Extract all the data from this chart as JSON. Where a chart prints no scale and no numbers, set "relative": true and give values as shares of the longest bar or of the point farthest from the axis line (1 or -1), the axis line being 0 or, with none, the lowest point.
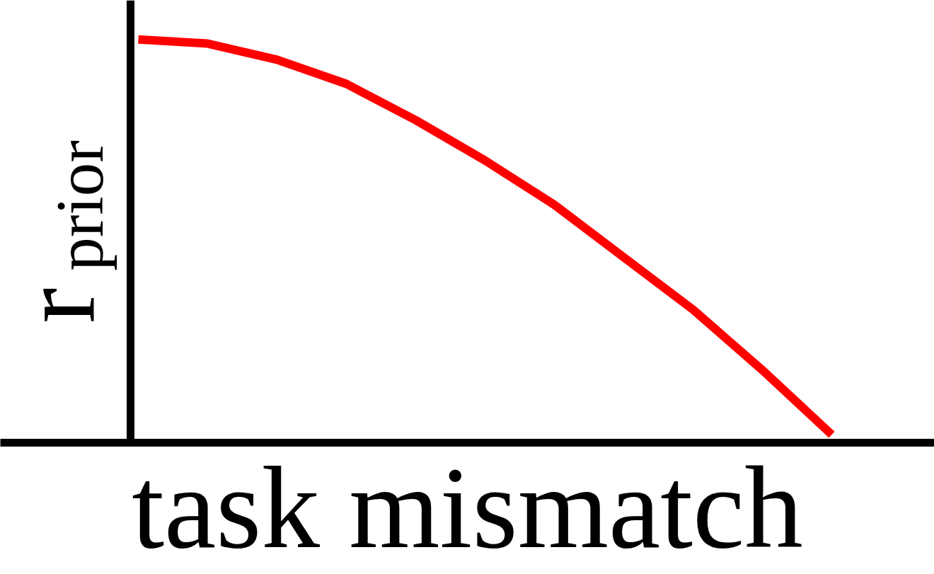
{
  "chart_data": {
    "type": "line",
    "xlabel": "task mismatch",
    "ylabel": "r$_{prior}$",
    "relative": true,
    "categories": [
      null,
      null,
      null,
      null,
      null,
      null,
      null,
      null,
      null,
      null,
      null
    ],
    "series": [
      {
        "color": "#ff0000",
        "values": [
          1.0,
          0.99,
          0.95,
          0.89,
          0.8,
          0.7,
          0.59,
          0.46,
          0.33,
          0.18,
          0.02
        ]
      }
    ]
  }
}
